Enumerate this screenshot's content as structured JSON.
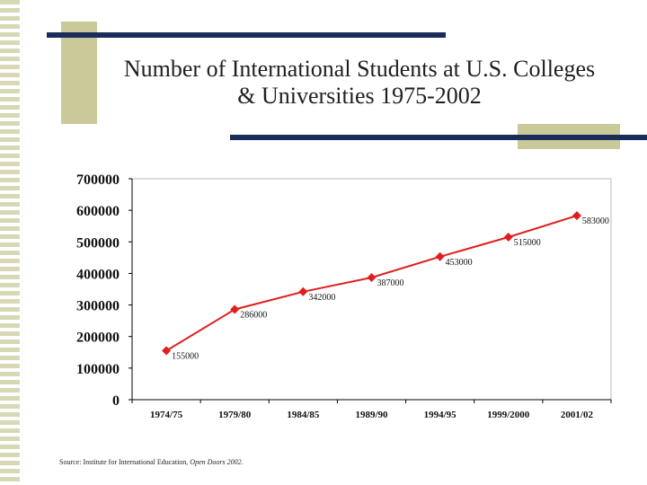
{
  "slide": {
    "title_line1": "Number of International Students at U.S. Colleges",
    "title_line2": "& Universities 1975-2002",
    "source_prefix": "Source: Institute for International Education, ",
    "source_publication": "Open Doors 2002",
    "source_suffix": "."
  },
  "colors": {
    "series": "#e01e1e",
    "navy": "#1a2d5a",
    "tan": "#c9c99a"
  },
  "chart_data": {
    "type": "line",
    "title": "",
    "xlabel": "",
    "ylabel": "",
    "ylim": [
      0,
      700000
    ],
    "yticks": [
      "0",
      "100000",
      "200000",
      "300000",
      "400000",
      "500000",
      "600000",
      "700000"
    ],
    "categories": [
      "1974/75",
      "1979/80",
      "1984/85",
      "1989/90",
      "1994/95",
      "1999/2000",
      "2001/02"
    ],
    "series": [
      {
        "values": [
          155000,
          286000,
          342000,
          387000,
          453000,
          515000,
          583000
        ],
        "labels": [
          "155000",
          "286000",
          "342000",
          "387000",
          "453000",
          "515000",
          "583000"
        ]
      }
    ],
    "grid": false,
    "legend": "none"
  }
}
